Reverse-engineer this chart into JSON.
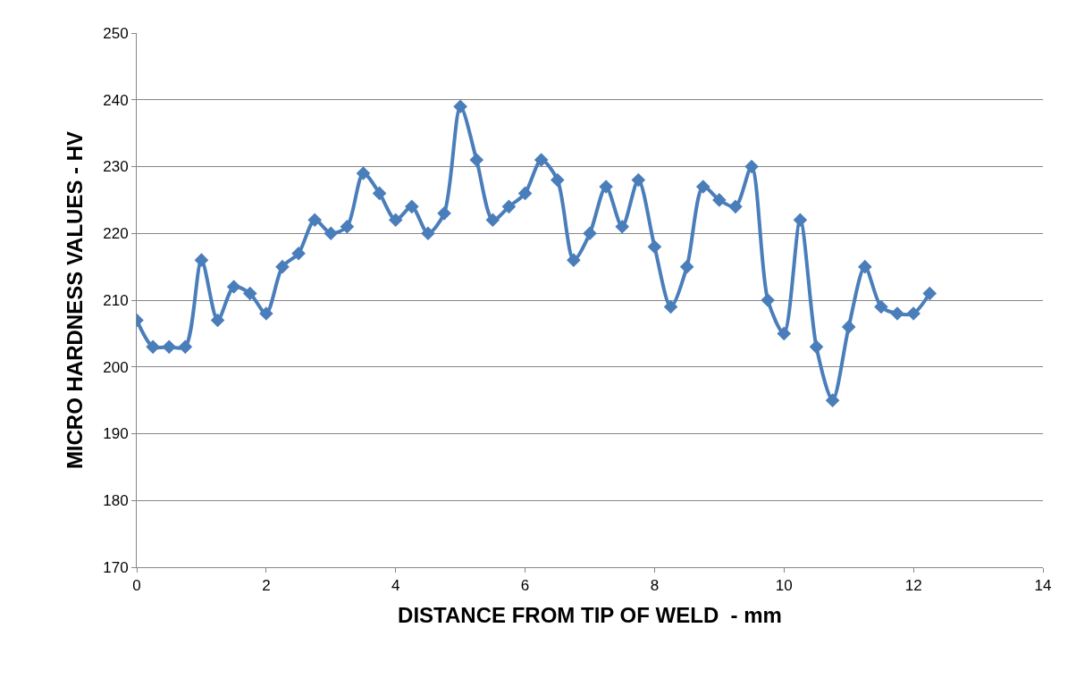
{
  "chart_data": {
    "type": "line",
    "xlabel": "DISTANCE FROM TIP OF WELD  - mm",
    "ylabel": "MICRO HARDNESS VALUES - HV",
    "x": [
      0,
      0.25,
      0.5,
      0.75,
      1,
      1.25,
      1.5,
      1.75,
      2,
      2.25,
      2.5,
      2.75,
      3,
      3.25,
      3.5,
      3.75,
      4,
      4.25,
      4.5,
      4.75,
      5,
      5.25,
      5.5,
      5.75,
      6,
      6.25,
      6.5,
      6.75,
      7,
      7.25,
      7.5,
      7.75,
      8,
      8.25,
      8.5,
      8.75,
      9,
      9.25,
      9.5,
      9.75,
      10,
      10.25,
      10.5,
      10.75,
      11,
      11.25,
      11.5,
      11.75,
      12,
      12.25
    ],
    "series": [
      {
        "color": "#4a7ebb",
        "values": [
          207,
          203,
          203,
          203,
          216,
          207,
          212,
          211,
          208,
          215,
          217,
          222,
          220,
          221,
          229,
          226,
          222,
          224,
          220,
          223,
          239,
          231,
          222,
          224,
          226,
          231,
          228,
          216,
          220,
          227,
          221,
          228,
          218,
          209,
          215,
          227,
          225,
          224,
          230,
          210,
          205,
          222,
          203,
          195,
          206,
          215,
          209,
          208,
          208,
          211
        ]
      }
    ],
    "xlim": [
      0,
      14
    ],
    "xticks": [
      0,
      2,
      4,
      6,
      8,
      10,
      12,
      14
    ],
    "ylim": [
      170,
      250
    ],
    "yticks": [
      170,
      180,
      190,
      200,
      210,
      220,
      230,
      240,
      250
    ],
    "grid": "y",
    "marker": "diamond",
    "line_style": "solid",
    "legend": false
  }
}
